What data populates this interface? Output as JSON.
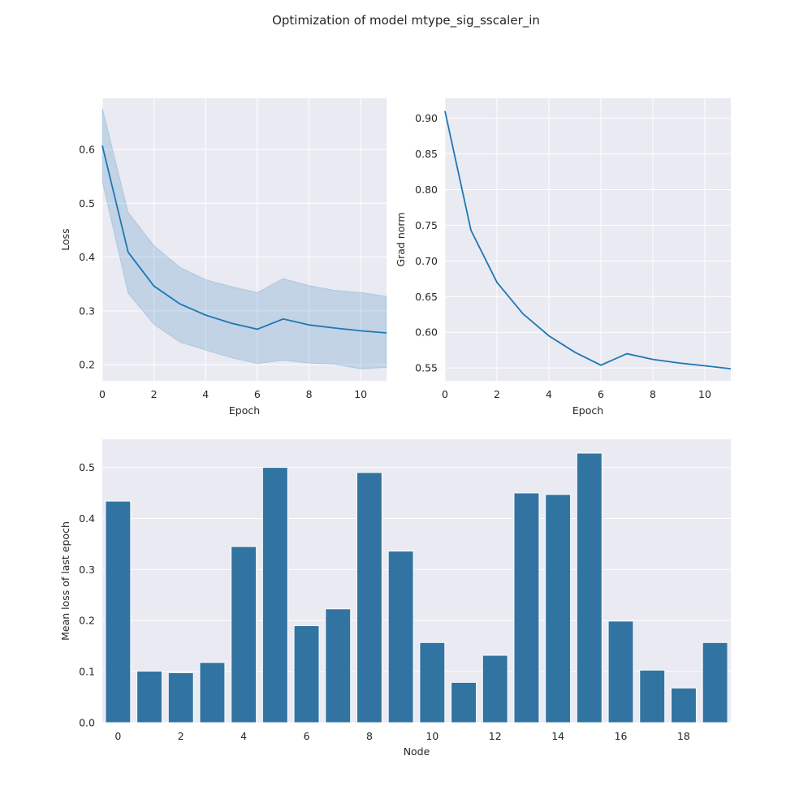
{
  "figure": {
    "suptitle": "Optimization of model mtype_sig_sscaler_in",
    "colors": {
      "background": "#eaeaf2",
      "grid": "#ffffff",
      "line": "#1f77b4",
      "band": "#1f77b4",
      "bar": "#3274a1"
    }
  },
  "chart_data": [
    {
      "type": "line",
      "name": "loss",
      "xlabel": "Epoch",
      "ylabel": "Loss",
      "xlim": [
        0,
        11
      ],
      "ylim": [
        0.17,
        0.695
      ],
      "xticks": [
        0,
        2,
        4,
        6,
        8,
        10
      ],
      "yticks": [
        0.2,
        0.3,
        0.4,
        0.5,
        0.6
      ],
      "grid": true,
      "x": [
        0,
        1,
        2,
        3,
        4,
        5,
        6,
        7,
        8,
        9,
        10,
        11
      ],
      "y": [
        0.607,
        0.409,
        0.346,
        0.313,
        0.292,
        0.277,
        0.266,
        0.285,
        0.274,
        0.268,
        0.263,
        0.259
      ],
      "band_upper": [
        0.677,
        0.483,
        0.421,
        0.381,
        0.358,
        0.345,
        0.334,
        0.36,
        0.347,
        0.338,
        0.334,
        0.327
      ],
      "band_lower": [
        0.541,
        0.333,
        0.275,
        0.242,
        0.227,
        0.213,
        0.202,
        0.208,
        0.203,
        0.201,
        0.192,
        0.195
      ]
    },
    {
      "type": "line",
      "name": "grad-norm",
      "xlabel": "Epoch",
      "ylabel": "Grad norm",
      "xlim": [
        0,
        11
      ],
      "ylim": [
        0.532,
        0.928
      ],
      "xticks": [
        0,
        2,
        4,
        6,
        8,
        10
      ],
      "yticks": [
        0.55,
        0.6,
        0.65,
        0.7,
        0.75,
        0.8,
        0.85,
        0.9
      ],
      "grid": true,
      "x": [
        0,
        1,
        2,
        3,
        4,
        5,
        6,
        7,
        8,
        9,
        10,
        11
      ],
      "y": [
        0.91,
        0.743,
        0.67,
        0.626,
        0.595,
        0.572,
        0.554,
        0.57,
        0.562,
        0.557,
        0.553,
        0.549
      ]
    },
    {
      "type": "bar",
      "name": "node-loss",
      "xlabel": "Node",
      "ylabel": "Mean loss of last epoch",
      "ylim": [
        0,
        0.555
      ],
      "yticks": [
        0.0,
        0.1,
        0.2,
        0.3,
        0.4,
        0.5
      ],
      "xticks": [
        0,
        2,
        4,
        6,
        8,
        10,
        12,
        14,
        16,
        18
      ],
      "grid": true,
      "categories": [
        0,
        1,
        2,
        3,
        4,
        5,
        6,
        7,
        8,
        9,
        10,
        11,
        12,
        13,
        14,
        15,
        16,
        17,
        18,
        19
      ],
      "values": [
        0.434,
        0.101,
        0.098,
        0.118,
        0.345,
        0.5,
        0.19,
        0.223,
        0.49,
        0.336,
        0.157,
        0.079,
        0.132,
        0.45,
        0.447,
        0.528,
        0.199,
        0.103,
        0.068,
        0.157
      ]
    }
  ]
}
